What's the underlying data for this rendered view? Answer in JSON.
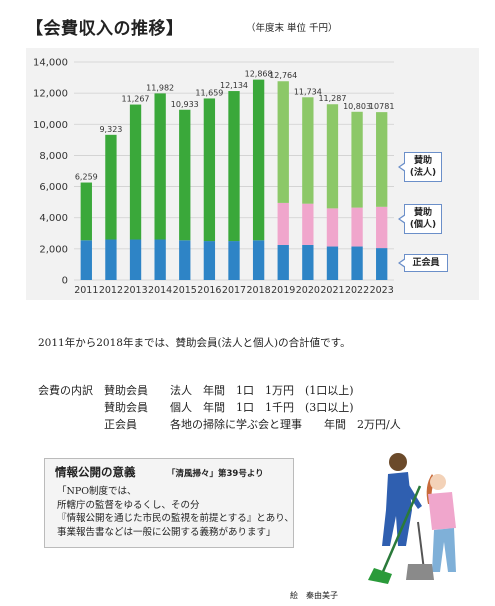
{
  "header": {
    "title": "【会費収入の推移】",
    "unit_note": "（年度末 単位 千円）"
  },
  "chart_data": {
    "type": "bar",
    "stacked": true,
    "categories": [
      "2011",
      "2012",
      "2013",
      "2014",
      "2015",
      "2016",
      "2017",
      "2018",
      "2019",
      "2020",
      "2021",
      "2022",
      "2023"
    ],
    "totals": [
      6259,
      9323,
      11267,
      11982,
      10933,
      11659,
      12134,
      12868,
      12764,
      11734,
      11287,
      10803,
      10781
    ],
    "total_labels": [
      "6,259",
      "9,323",
      "11,267",
      "11,982",
      "10,933",
      "11,659",
      "12,134",
      "12,868",
      "12,764",
      "11,734",
      "11,287",
      "10,803",
      "10781"
    ],
    "series": [
      {
        "name": "正会員",
        "color": "#2e84c6",
        "values": [
          2550,
          2600,
          2600,
          2600,
          2550,
          2500,
          2500,
          2550,
          2250,
          2250,
          2150,
          2150,
          2050
        ]
      },
      {
        "name": "賛助\n(個人)",
        "color": "#f0a6cc",
        "values": [
          0,
          0,
          0,
          0,
          0,
          0,
          0,
          0,
          2700,
          2650,
          2450,
          2500,
          2650
        ]
      },
      {
        "name": "賛助\n(法人)",
        "colors": [
          "#3aa83a",
          "#3aa83a",
          "#3aa83a",
          "#3aa83a",
          "#3aa83a",
          "#3aa83a",
          "#3aa83a",
          "#3aa83a",
          "#8cc868",
          "#8cc868",
          "#8cc868",
          "#8cc868",
          "#8cc868"
        ],
        "values": [
          3709,
          6723,
          8667,
          9382,
          8383,
          9159,
          9634,
          10318,
          7814,
          6834,
          6687,
          6153,
          6081
        ]
      }
    ],
    "ylim": [
      0,
      14000
    ],
    "yticks": [
      "0",
      "2,000",
      "4,000",
      "6,000",
      "8,000",
      "10,000",
      "12,000",
      "14,000"
    ],
    "grid": true
  },
  "callouts": {
    "corporate": "賛助\n(法人)",
    "individual": "賛助\n(個人)",
    "regular": "正会員"
  },
  "note": "2011年から2018年までは、賛助会員(法人と個人)の合計値です。",
  "breakdown": {
    "rows": [
      "会費の内訳　賛助会員　　法人　年間　1口　1万円　(1口以上)",
      "　　　　　　賛助会員　　個人　年間　1口　1千円　(3口以上)",
      "　　　　　　正会員　　　各地の掃除に学ぶ会と理事　　年間　2万円/人"
    ]
  },
  "info": {
    "title": "情報公開の意義",
    "source": "「清風掃々」第39号より",
    "body": "「NPO制度では、\n所轄庁の監督をゆるくし、その分\n『情報公開を通じた市民の監視を前提とする』とあり、\n事業報告書などは一般に公開する義務があります」"
  },
  "credit": "絵　秦由美子"
}
